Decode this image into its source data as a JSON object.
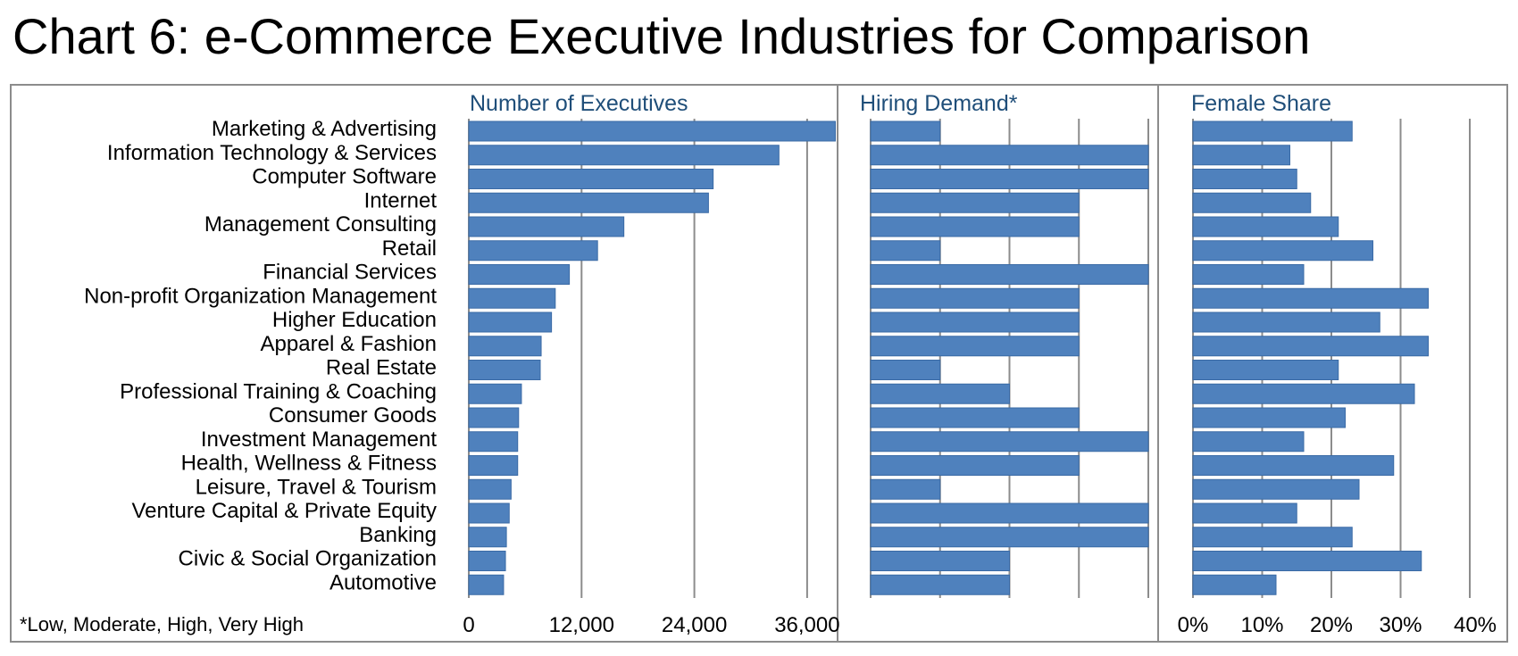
{
  "title": "Chart 6: e-Commerce Executive Industries for Comparison",
  "footnote": "*Low, Moderate, High, Very High",
  "chart_data": {
    "type": "bar",
    "orientation": "horizontal",
    "categories": [
      "Marketing & Advertising",
      "Information Technology & Services",
      "Computer Software",
      "Internet",
      "Management Consulting",
      "Retail",
      "Financial Services",
      "Non-profit Organization Management",
      "Higher Education",
      "Apparel & Fashion",
      "Real Estate",
      "Professional Training & Coaching",
      "Consumer Goods",
      "Investment Management",
      "Health, Wellness & Fitness",
      "Leisure, Travel & Tourism",
      "Venture Capital & Private Equity",
      "Banking",
      "Civic & Social Organization",
      "Automotive"
    ],
    "panels": [
      {
        "name": "Number of Executives",
        "xlim": [
          0,
          40000
        ],
        "ticks": [
          0,
          12000,
          24000,
          36000
        ],
        "tick_labels": [
          "0",
          "12,000",
          "24,000",
          "36,000"
        ],
        "values": [
          39000,
          33000,
          26000,
          25500,
          16500,
          13700,
          10700,
          9200,
          8800,
          7700,
          7600,
          5600,
          5300,
          5200,
          5200,
          4500,
          4300,
          4000,
          3900,
          3700
        ]
      },
      {
        "name": "Hiring Demand*",
        "xlim": [
          0,
          4
        ],
        "ticks": [
          0,
          1,
          2,
          3,
          4
        ],
        "tick_labels": [],
        "values": [
          1,
          4,
          4,
          3,
          3,
          1,
          4,
          3,
          3,
          3,
          1,
          2,
          3,
          4,
          3,
          1,
          4,
          4,
          2,
          2
        ]
      },
      {
        "name": "Female Share",
        "xlim": [
          0,
          40
        ],
        "ticks": [
          0,
          10,
          20,
          30,
          40
        ],
        "tick_labels": [
          "0%",
          "10%",
          "20%",
          "30%",
          "40%"
        ],
        "values": [
          23,
          14,
          15,
          17,
          21,
          26,
          16,
          34,
          27,
          34,
          21,
          32,
          22,
          16,
          29,
          24,
          15,
          23,
          33,
          12
        ]
      }
    ],
    "grid": true
  }
}
